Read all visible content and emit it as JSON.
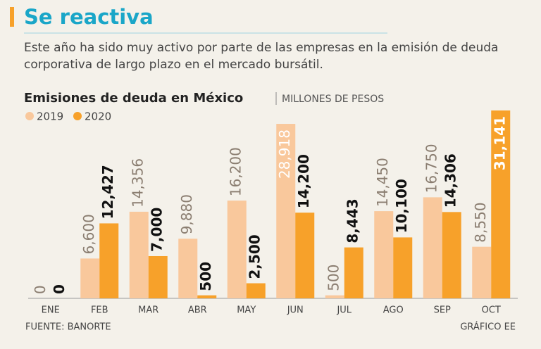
{
  "chart_data": {
    "type": "bar",
    "title": "Se reactiva",
    "subtitle": "Este año ha sido muy activo por parte de las empresas en la emisión de deuda corporativa de largo plazo en el mercado bursátil.",
    "chart_title": "Emisiones de deuda en México",
    "units": "MILLONES DE PESOS",
    "categories": [
      "ENE",
      "FEB",
      "MAR",
      "ABR",
      "MAY",
      "JUN",
      "JUL",
      "AGO",
      "SEP",
      "OCT"
    ],
    "series": [
      {
        "name": "2019",
        "color": "#f9c89c",
        "values": [
          0,
          6600,
          14356,
          9880,
          16200,
          28918,
          500,
          14450,
          16750,
          8550
        ],
        "value_labels": [
          "0",
          "6,600",
          "14,356",
          "9,880",
          "16,200",
          "28,918",
          "500",
          "14,450",
          "16,750",
          "8,550"
        ]
      },
      {
        "name": "2020",
        "color": "#f7a12a",
        "values": [
          0,
          12427,
          7000,
          500,
          2500,
          14200,
          8443,
          10100,
          14306,
          31141
        ],
        "value_labels": [
          "0",
          "12,427",
          "7,000",
          "500",
          "2,500",
          "14,200",
          "8,443",
          "10,100",
          "14,306",
          "31,141"
        ]
      }
    ],
    "source": "FUENTE: BANORTE",
    "credit": "GRÁFICO EE"
  }
}
